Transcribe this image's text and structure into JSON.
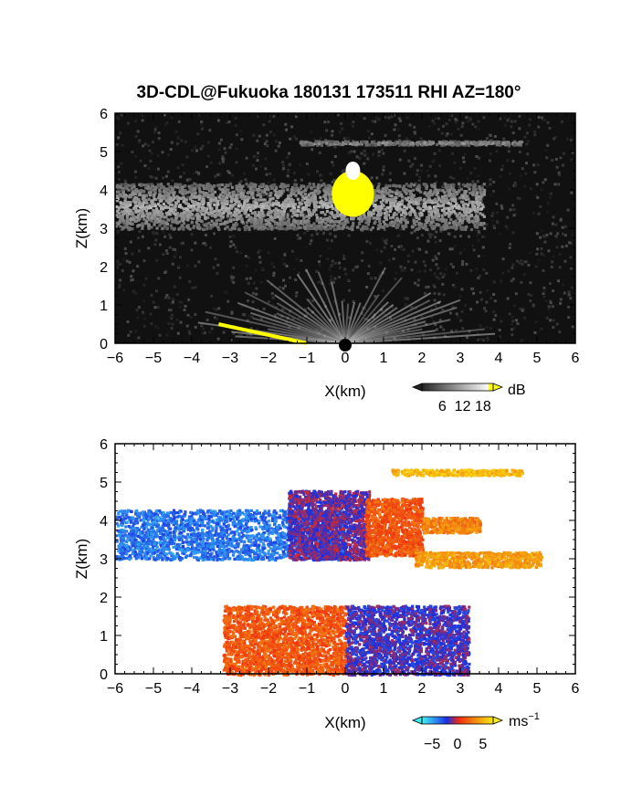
{
  "title": "3D-CDL@Fukuoka 180131 173511 RHI AZ=180°",
  "chart_data": [
    {
      "type": "heatmap",
      "quantity": "reflectivity",
      "xlabel": "X(km)",
      "ylabel": "Z(km)",
      "xlim": [
        -6,
        6
      ],
      "ylim": [
        0,
        6
      ],
      "xticks": [
        "-6",
        "-5",
        "-4",
        "-3",
        "-2",
        "-1",
        "0",
        "1",
        "2",
        "3",
        "4",
        "5",
        "6"
      ],
      "yticks": [
        "0",
        "1",
        "2",
        "3",
        "4",
        "5",
        "6"
      ],
      "colorbar": {
        "unit": "dB",
        "ticks": [
          "6",
          "12",
          "18"
        ],
        "tick_values": [
          6,
          12,
          18
        ],
        "range": [
          0,
          21
        ]
      },
      "colors": {
        "background": "#111111",
        "low": "#222222",
        "mid": "#9a9a9a",
        "high": "#ffffff",
        "saturated": "#ffff00"
      },
      "features": [
        {
          "name": "cloud layer",
          "x_range": [
            -6,
            3.6
          ],
          "z_range": [
            3.0,
            4.2
          ],
          "level_db": 11
        },
        {
          "name": "cloud core",
          "x_range": [
            -0.4,
            0.8
          ],
          "z_range": [
            3.2,
            4.6
          ],
          "level_db": 21
        },
        {
          "name": "upper thin layer",
          "x_range": [
            -1.2,
            4.6
          ],
          "z_range": [
            5.2,
            5.3
          ],
          "level_db": 9
        },
        {
          "name": "near-radar fan",
          "x_range": [
            -3.5,
            3.5
          ],
          "z_range": [
            0,
            2.0
          ],
          "level_db": 10
        },
        {
          "name": "ground clutter",
          "x_range": [
            -3.3,
            -1.0
          ],
          "z_range": [
            0.0,
            0.5
          ],
          "level_db": 21
        }
      ]
    },
    {
      "type": "heatmap",
      "quantity": "doppler velocity",
      "xlabel": "X(km)",
      "ylabel": "Z(km)",
      "xlim": [
        -6,
        6
      ],
      "ylim": [
        0,
        6
      ],
      "xticks": [
        "-6",
        "-5",
        "-4",
        "-3",
        "-2",
        "-1",
        "0",
        "1",
        "2",
        "3",
        "4",
        "5",
        "6"
      ],
      "yticks": [
        "0",
        "1",
        "2",
        "3",
        "4",
        "5",
        "6"
      ],
      "colorbar": {
        "unit": "ms",
        "unit_exp": "−1",
        "ticks": [
          "−5",
          "0",
          "5"
        ],
        "tick_values": [
          -5,
          0,
          5
        ],
        "range": [
          -7,
          7
        ]
      },
      "colormap": [
        "#40e8f0",
        "#2f8ff0",
        "#1a2ee0",
        "#f02a10",
        "#f07010",
        "#f5b010",
        "#f8f010"
      ],
      "regions": [
        {
          "name": "cloud west",
          "x_range": [
            -6,
            0
          ],
          "z_range": [
            3.0,
            4.3
          ],
          "velocity": -4.0
        },
        {
          "name": "cloud center-west",
          "x_range": [
            -1.5,
            0.6
          ],
          "z_range": [
            3.0,
            4.8
          ],
          "velocity": -1.5
        },
        {
          "name": "cloud center-east",
          "x_range": [
            0.5,
            2.0
          ],
          "z_range": [
            3.1,
            4.6
          ],
          "velocity": 1.5
        },
        {
          "name": "upper east arm",
          "x_range": [
            2.0,
            3.5
          ],
          "z_range": [
            3.7,
            4.1
          ],
          "velocity": 3.0
        },
        {
          "name": "lower east arm",
          "x_range": [
            1.8,
            5.1
          ],
          "z_range": [
            2.8,
            3.2
          ],
          "velocity": 4.0
        },
        {
          "name": "upper thin layer",
          "x_range": [
            1.2,
            4.6
          ],
          "z_range": [
            5.2,
            5.35
          ],
          "velocity": 5.0
        },
        {
          "name": "boundary layer west",
          "x_range": [
            -3.2,
            0
          ],
          "z_range": [
            0.0,
            1.8
          ],
          "velocity": 1.5
        },
        {
          "name": "boundary layer east",
          "x_range": [
            0,
            3.2
          ],
          "z_range": [
            0.0,
            1.8
          ],
          "velocity": -2.0
        }
      ]
    }
  ]
}
